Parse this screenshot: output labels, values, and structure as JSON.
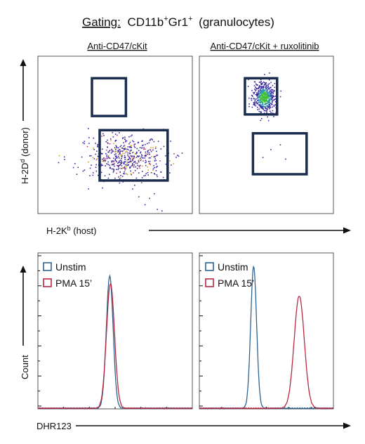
{
  "figure": {
    "title_prefix": "Gating:",
    "title_markers": [
      {
        "base": "CD11b",
        "sup": "+"
      },
      {
        "base": "Gr1",
        "sup": "+"
      }
    ],
    "title_suffix": "(granulocytes)"
  },
  "colors": {
    "gate": "#1b2d4f",
    "unstim": "#2f6491",
    "pma": "#b8283f",
    "dot_blue": "#3a2aa0",
    "dot_green": "#3fbf3a",
    "axis": "#111111"
  },
  "chart_data": [
    {
      "type": "scatter",
      "title": "Anti-CD47/cKit",
      "xlabel": {
        "base": "H-2K",
        "sup": "b",
        "rest": " (host)"
      },
      "ylabel": {
        "base": "H-2D",
        "sup": "d",
        "rest": " (donor)"
      },
      "xlim": [
        0,
        100
      ],
      "ylim": [
        0,
        100
      ],
      "gates": [
        {
          "name": "donor-gate",
          "x": [
            35,
            57
          ],
          "y": [
            62,
            86
          ]
        },
        {
          "name": "host-gate",
          "x": [
            40,
            84
          ],
          "y": [
            21,
            53
          ]
        }
      ],
      "clusters": [
        {
          "cx": 57,
          "cy": 36,
          "sx": 13,
          "sy": 7,
          "n": 520,
          "density_peak": "low"
        }
      ],
      "outliers": [
        [
          72,
          10
        ],
        [
          75,
          13
        ],
        [
          69,
          6
        ],
        [
          77,
          3
        ],
        [
          80,
          2
        ],
        [
          61,
          16
        ],
        [
          65,
          11
        ]
      ]
    },
    {
      "type": "scatter",
      "title": "Anti-CD47/cKit + ruxolitinib",
      "xlim": [
        0,
        100
      ],
      "ylim": [
        0,
        100
      ],
      "gates": [
        {
          "name": "donor-gate",
          "x": [
            34,
            58
          ],
          "y": [
            63,
            86
          ]
        },
        {
          "name": "host-gate",
          "x": [
            40,
            80
          ],
          "y": [
            25,
            51
          ]
        }
      ],
      "clusters": [
        {
          "cx": 48,
          "cy": 74,
          "sx": 4.2,
          "sy": 5,
          "n": 520,
          "density_peak": "high"
        }
      ],
      "outliers": [
        [
          60,
          44
        ],
        [
          53,
          41
        ],
        [
          64,
          35
        ],
        [
          47,
          36
        ]
      ]
    },
    {
      "type": "line",
      "ylabel": "Count",
      "xlabel": "DHR123",
      "xlim": [
        0,
        100
      ],
      "ylim": [
        0,
        100
      ],
      "series": [
        {
          "name": "Unstim",
          "peak_x": 46.5,
          "peak_y": 85,
          "width": 2.2,
          "color_key": "unstim"
        },
        {
          "name": "PMA 15’",
          "peak_x": 47.0,
          "peak_y": 80,
          "width": 2.6,
          "color_key": "pma"
        }
      ]
    },
    {
      "type": "line",
      "xlim": [
        0,
        100
      ],
      "ylim": [
        0,
        100
      ],
      "series": [
        {
          "name": "Unstim",
          "peak_x": 40.5,
          "peak_y": 91,
          "width": 2.2,
          "color_key": "unstim"
        },
        {
          "name": "PMA 15’",
          "peak_x": 74.5,
          "peak_y": 72,
          "width": 3.8,
          "color_key": "pma"
        }
      ]
    }
  ]
}
